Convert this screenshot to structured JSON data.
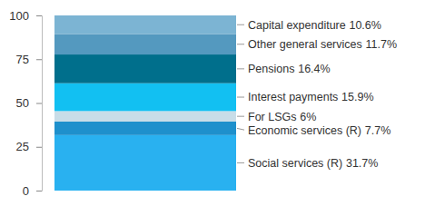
{
  "chart_data": {
    "type": "bar",
    "stacked": true,
    "data_labels": true,
    "tick_labels": "y",
    "categories": [
      null
    ],
    "ylim": [
      0,
      100
    ],
    "yticks": [
      0,
      25,
      50,
      75,
      100
    ],
    "series": [
      {
        "name": "Social services (R)",
        "color": "#29b1f0",
        "values": [
          31.7
        ],
        "value_labels": [
          "31.7%"
        ]
      },
      {
        "name": "Economic services (R)",
        "color": "#1e90cc",
        "values": [
          7.7
        ],
        "value_labels": [
          "7.7%"
        ]
      },
      {
        "name": "For LSGs",
        "color": "#c8dde8",
        "values": [
          6
        ],
        "value_labels": [
          "6%"
        ]
      },
      {
        "name": "Interest payments",
        "color": "#12c0f2",
        "values": [
          15.9
        ],
        "value_labels": [
          "15.9%"
        ]
      },
      {
        "name": "Pensions",
        "color": "#006f8c",
        "values": [
          16.4
        ],
        "value_labels": [
          "16.4%"
        ]
      },
      {
        "name": "Other general services",
        "color": "#5499bf",
        "values": [
          11.7
        ],
        "value_labels": [
          "11.7%"
        ]
      },
      {
        "name": "Capital expenditure",
        "color": "#7cb4d3",
        "values": [
          10.6
        ],
        "value_labels": [
          "10.6%"
        ]
      }
    ]
  }
}
